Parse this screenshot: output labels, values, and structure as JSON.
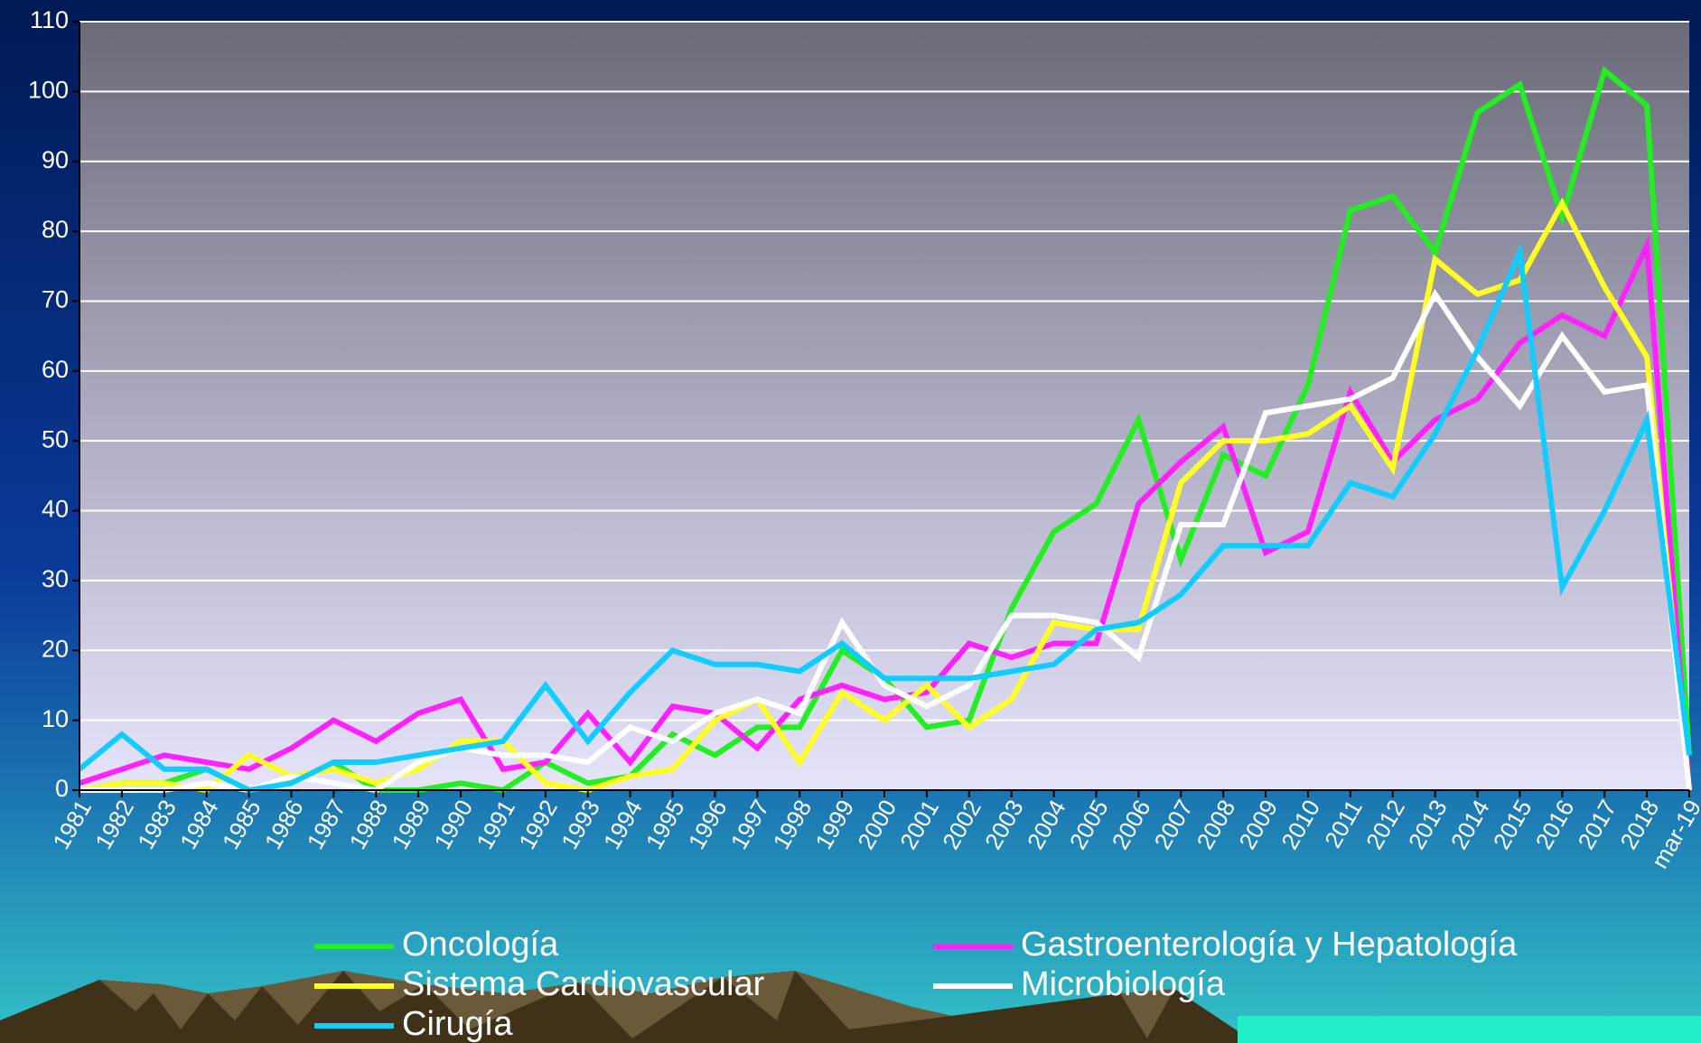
{
  "chart_data": {
    "type": "line",
    "categories": [
      "1981",
      "1982",
      "1983",
      "1984",
      "1985",
      "1986",
      "1987",
      "1988",
      "1989",
      "1990",
      "1991",
      "1992",
      "1993",
      "1994",
      "1995",
      "1996",
      "1997",
      "1998",
      "1999",
      "2000",
      "2001",
      "2002",
      "2003",
      "2004",
      "2005",
      "2006",
      "2007",
      "2008",
      "2009",
      "2010",
      "2011",
      "2012",
      "2013",
      "2014",
      "2015",
      "2016",
      "2017",
      "2018",
      "mar-19"
    ],
    "series": [
      {
        "name": "Oncología",
        "color": "#22ee22",
        "values": [
          0,
          1,
          1,
          3,
          0,
          1,
          4,
          0,
          0,
          1,
          0,
          4,
          1,
          2,
          8,
          5,
          9,
          9,
          20,
          16,
          9,
          10,
          26,
          37,
          41,
          53,
          33,
          48,
          45,
          58,
          83,
          85,
          77,
          97,
          101,
          82,
          103,
          98,
          5
        ]
      },
      {
        "name": "Gastroenterología y Hepatología",
        "color": "#ff22ff",
        "values": [
          1,
          3,
          5,
          4,
          3,
          6,
          10,
          7,
          11,
          13,
          3,
          4,
          11,
          4,
          12,
          11,
          6,
          13,
          15,
          13,
          14,
          21,
          19,
          21,
          21,
          41,
          47,
          52,
          34,
          37,
          57,
          47,
          53,
          56,
          64,
          68,
          65,
          78,
          0
        ]
      },
      {
        "name": "Sistema Cardiovascular",
        "color": "#ffff22",
        "values": [
          0,
          1,
          1,
          0,
          5,
          2,
          3,
          1,
          3,
          7,
          7,
          1,
          0,
          2,
          3,
          10,
          13,
          4,
          14,
          10,
          15,
          9,
          13,
          24,
          23,
          23,
          44,
          50,
          50,
          51,
          55,
          46,
          76,
          71,
          73,
          84,
          72,
          62,
          0
        ]
      },
      {
        "name": "Microbiología",
        "color": "#ffffff",
        "values": [
          0,
          0,
          0,
          1,
          0,
          2,
          1,
          0,
          4,
          6,
          5,
          5,
          4,
          9,
          7,
          11,
          13,
          11,
          24,
          15,
          12,
          15,
          25,
          25,
          24,
          19,
          38,
          38,
          54,
          55,
          56,
          59,
          71,
          62,
          55,
          65,
          57,
          58,
          0
        ]
      },
      {
        "name": "Cirugía",
        "color": "#11ccff",
        "values": [
          3,
          8,
          3,
          3,
          0,
          1,
          4,
          4,
          5,
          6,
          7,
          15,
          7,
          14,
          20,
          18,
          18,
          17,
          21,
          16,
          16,
          16,
          17,
          18,
          23,
          24,
          28,
          35,
          35,
          35,
          44,
          42,
          51,
          63,
          77,
          29,
          40,
          53,
          5
        ]
      }
    ],
    "ylim": [
      0,
      110
    ],
    "yticks": [
      0,
      10,
      20,
      30,
      40,
      50,
      60,
      70,
      80,
      90,
      100,
      110
    ],
    "grid": true
  }
}
